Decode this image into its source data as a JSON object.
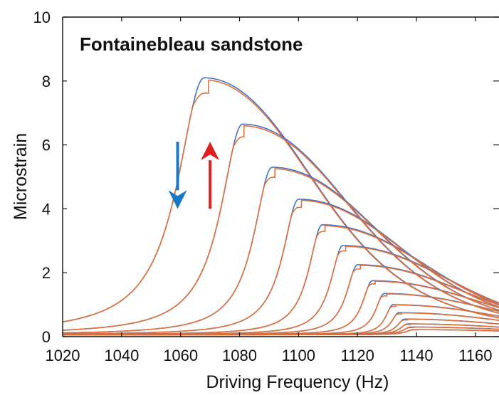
{
  "chart_data": {
    "type": "line",
    "title": "Fontainebleau sandstone",
    "xlabel": "Driving Frequency (Hz)",
    "ylabel": "Microstrain",
    "xlim": [
      1020,
      1168
    ],
    "ylim": [
      0,
      10
    ],
    "xticks": [
      "1020",
      "1040",
      "1060",
      "1080",
      "1100",
      "1120",
      "1140",
      "1160"
    ],
    "yticks": [
      "0",
      "2",
      "4",
      "6",
      "8",
      "10"
    ],
    "grid": false,
    "colors": {
      "down_sweep": "#4472C4",
      "up_sweep": "#E0703A",
      "down_arrow": "#1878C8",
      "up_arrow": "#E02020"
    },
    "annotations": [
      {
        "type": "arrow",
        "meaning": "downward frequency sweep",
        "color": "#1878C8",
        "x": 1059,
        "y_from": 6.1,
        "y_to": 4.0
      },
      {
        "type": "arrow",
        "meaning": "upward frequency sweep",
        "color": "#E02020",
        "x": 1070,
        "y_from": 4.0,
        "y_to": 6.1
      }
    ],
    "series_shape": {
      "background_level": 0.06,
      "high_frequency_tail_width": 55
    },
    "resonance_peaks": [
      {
        "peak_frequency": 1068,
        "peak_microstrain": 8.1,
        "low_side_width": 11,
        "up_sweep_jump": 1069.5
      },
      {
        "peak_frequency": 1081,
        "peak_microstrain": 6.65,
        "low_side_width": 9,
        "up_sweep_jump": 1081.5
      },
      {
        "peak_frequency": 1091,
        "peak_microstrain": 5.3,
        "low_side_width": 7.5,
        "up_sweep_jump": 1092
      },
      {
        "peak_frequency": 1100,
        "peak_microstrain": 4.3,
        "low_side_width": 6.5,
        "up_sweep_jump": 1101
      },
      {
        "peak_frequency": 1108,
        "peak_microstrain": 3.5,
        "low_side_width": 5.5,
        "up_sweep_jump": 1109
      },
      {
        "peak_frequency": 1115,
        "peak_microstrain": 2.85,
        "low_side_width": 5,
        "up_sweep_jump": 1116
      },
      {
        "peak_frequency": 1120,
        "peak_microstrain": 2.25,
        "low_side_width": 4.5,
        "up_sweep_jump": 1121
      },
      {
        "peak_frequency": 1125,
        "peak_microstrain": 1.75,
        "low_side_width": 4,
        "up_sweep_jump": 1126
      },
      {
        "peak_frequency": 1129,
        "peak_microstrain": 1.35,
        "low_side_width": 3.5,
        "up_sweep_jump": 1130
      },
      {
        "peak_frequency": 1132,
        "peak_microstrain": 1.0,
        "low_side_width": 3,
        "up_sweep_jump": 1133
      },
      {
        "peak_frequency": 1134,
        "peak_microstrain": 0.75,
        "low_side_width": 3,
        "up_sweep_jump": 1135
      },
      {
        "peak_frequency": 1136,
        "peak_microstrain": 0.55,
        "low_side_width": 3,
        "up_sweep_jump": 1137
      },
      {
        "peak_frequency": 1137,
        "peak_microstrain": 0.4,
        "low_side_width": 3,
        "up_sweep_jump": 1138
      },
      {
        "peak_frequency": 1138,
        "peak_microstrain": 0.3,
        "low_side_width": 3,
        "up_sweep_jump": 1139
      },
      {
        "peak_frequency": 1139,
        "peak_microstrain": 0.22,
        "low_side_width": 3,
        "up_sweep_jump": 1140
      }
    ]
  }
}
